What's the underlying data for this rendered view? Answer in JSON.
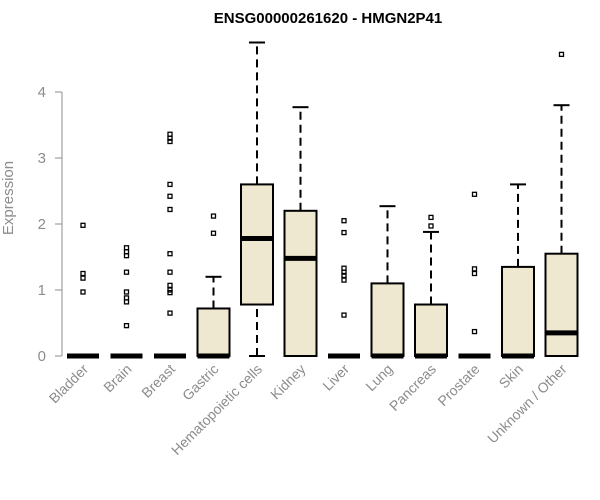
{
  "chart_data": {
    "type": "boxplot",
    "title": "ENSG00000261620 - HMGN2P41",
    "xlabel": "",
    "ylabel": "Expression",
    "ylim": [
      0,
      4.8
    ],
    "yticks": [
      0,
      1,
      2,
      3,
      4
    ],
    "grid": false,
    "legend": "none",
    "colors": {
      "box_fill": "#efe8d0",
      "stroke": "#000000",
      "axis_text": "#8c8c8c"
    },
    "categories": [
      "Bladder",
      "Brain",
      "Breast",
      "Gastric",
      "Hematopoietic cells",
      "Kidney",
      "Liver",
      "Lung",
      "Pancreas",
      "Prostate",
      "Skin",
      "Unknown / Other"
    ],
    "boxes": [
      {
        "q1": 0,
        "median": 0,
        "q3": 0,
        "whisker_low": 0,
        "whisker_high": 0,
        "outliers": [
          1.98,
          1.25,
          1.18,
          0.97
        ]
      },
      {
        "q1": 0,
        "median": 0,
        "q3": 0,
        "whisker_low": 0,
        "whisker_high": 0,
        "outliers": [
          1.64,
          1.58,
          1.52,
          1.27,
          0.97,
          0.88,
          0.82,
          0.46
        ]
      },
      {
        "q1": 0,
        "median": 0,
        "q3": 0,
        "whisker_low": 0,
        "whisker_high": 0,
        "outliers": [
          3.36,
          3.3,
          3.25,
          2.6,
          2.42,
          2.22,
          1.55,
          1.27,
          1.07,
          1.0,
          0.96,
          0.65
        ]
      },
      {
        "q1": 0,
        "median": 0,
        "q3": 0.72,
        "whisker_low": 0,
        "whisker_high": 1.2,
        "outliers": [
          2.12,
          1.86
        ]
      },
      {
        "q1": 0.78,
        "median": 1.78,
        "q3": 2.6,
        "whisker_low": 0,
        "whisker_high": 4.75,
        "outliers": []
      },
      {
        "q1": 0,
        "median": 1.48,
        "q3": 2.2,
        "whisker_low": 0,
        "whisker_high": 3.77,
        "outliers": []
      },
      {
        "q1": 0,
        "median": 0,
        "q3": 0,
        "whisker_low": 0,
        "whisker_high": 0,
        "outliers": [
          2.05,
          1.87,
          1.33,
          1.27,
          1.22,
          1.15,
          0.62
        ]
      },
      {
        "q1": 0,
        "median": 0,
        "q3": 1.1,
        "whisker_low": 0,
        "whisker_high": 2.27,
        "outliers": []
      },
      {
        "q1": 0,
        "median": 0,
        "q3": 0.78,
        "whisker_low": 0,
        "whisker_high": 1.88,
        "outliers": [
          2.1,
          1.97
        ]
      },
      {
        "q1": 0,
        "median": 0,
        "q3": 0,
        "whisker_low": 0,
        "whisker_high": 0,
        "outliers": [
          2.45,
          1.32,
          1.25,
          0.37
        ]
      },
      {
        "q1": 0,
        "median": 0,
        "q3": 1.35,
        "whisker_low": 0,
        "whisker_high": 2.6,
        "outliers": []
      },
      {
        "q1": 0,
        "median": 0.35,
        "q3": 1.55,
        "whisker_low": 0,
        "whisker_high": 3.8,
        "outliers": [
          4.57
        ]
      }
    ]
  }
}
